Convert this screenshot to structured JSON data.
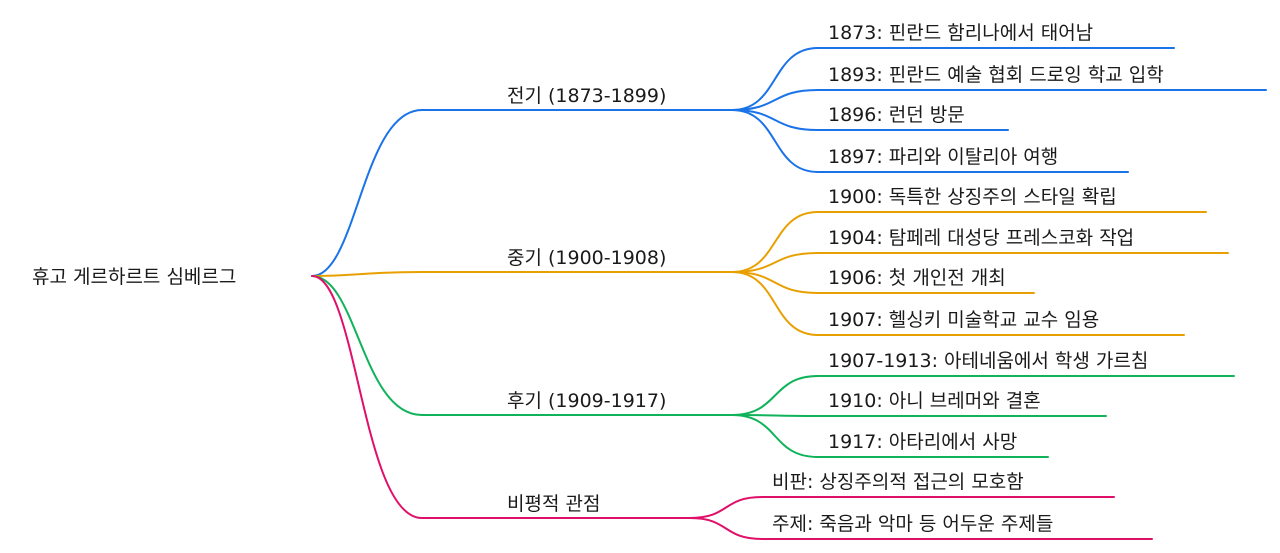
{
  "root": {
    "label": "휴고 게르하르트 심베르그"
  },
  "colors": {
    "branch_early": "#1a73e8",
    "branch_middle": "#e8a000",
    "branch_late": "#10b35a",
    "branch_critical": "#e0106a",
    "text": "#1a1a1a"
  },
  "branches": [
    {
      "label": "전기 (1873-1899)",
      "children": [
        "1873: 핀란드 함리나에서 태어남",
        "1893: 핀란드 예술 협회 드로잉 학교 입학",
        "1896: 런던 방문",
        "1897: 파리와 이탈리아 여행"
      ]
    },
    {
      "label": "중기 (1900-1908)",
      "children": [
        "1900: 독특한 상징주의 스타일 확립",
        "1904: 탐페레 대성당 프레스코화 작업",
        "1906: 첫 개인전 개최",
        "1907: 헬싱키 미술학교 교수 임용"
      ]
    },
    {
      "label": "후기 (1909-1917)",
      "children": [
        "1907-1913: 아테네움에서 학생 가르침",
        "1910: 아니 브레머와 결혼",
        "1917: 아타리에서 사망"
      ]
    },
    {
      "label": "비평적 관점",
      "children": [
        "비판: 상징주의적 접근의 모호함",
        "주제: 죽음과 악마 등 어두운 주제들"
      ]
    }
  ]
}
